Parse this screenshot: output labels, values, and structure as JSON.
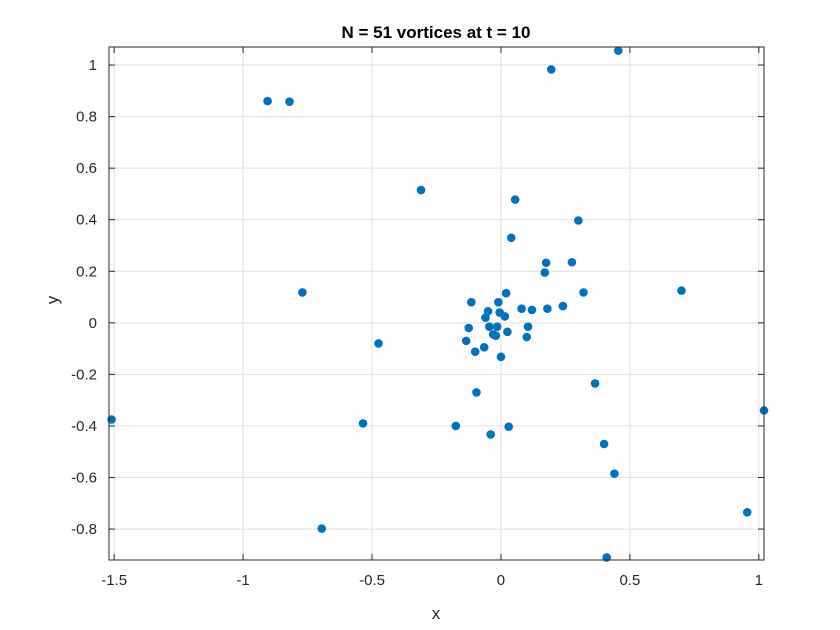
{
  "chart_data": {
    "type": "scatter",
    "title": "N = 51 vortices at t = 10",
    "xlabel": "x",
    "ylabel": "y",
    "xlim": [
      -1.52,
      1.02
    ],
    "ylim": [
      -0.92,
      1.07
    ],
    "xticks": [
      -1.5,
      -1,
      -0.5,
      0,
      0.5,
      1
    ],
    "xtick_labels": [
      "-1.5",
      "-1",
      "-0.5",
      "0",
      "0.5",
      "1"
    ],
    "yticks": [
      -0.8,
      -0.6,
      -0.4,
      -0.2,
      0,
      0.2,
      0.4,
      0.6,
      0.8,
      1
    ],
    "ytick_labels": [
      "-0.8",
      "-0.6",
      "-0.4",
      "-0.2",
      "0",
      "0.2",
      "0.4",
      "0.6",
      "0.8",
      "1"
    ],
    "grid": true,
    "marker_color": "#0072BD",
    "points": [
      [
        -1.51,
        -0.375
      ],
      [
        -0.905,
        0.86
      ],
      [
        -0.82,
        0.858
      ],
      [
        -0.77,
        0.118
      ],
      [
        -0.695,
        -0.798
      ],
      [
        -0.535,
        -0.39
      ],
      [
        -0.475,
        -0.08
      ],
      [
        -0.31,
        0.515
      ],
      [
        -0.175,
        -0.4
      ],
      [
        -0.135,
        -0.07
      ],
      [
        -0.125,
        -0.02
      ],
      [
        -0.115,
        0.08
      ],
      [
        -0.1,
        -0.112
      ],
      [
        -0.095,
        -0.27
      ],
      [
        -0.065,
        -0.095
      ],
      [
        -0.06,
        0.02
      ],
      [
        -0.05,
        0.045
      ],
      [
        -0.045,
        -0.015
      ],
      [
        -0.04,
        -0.433
      ],
      [
        -0.03,
        -0.045
      ],
      [
        -0.02,
        -0.05
      ],
      [
        -0.015,
        -0.015
      ],
      [
        -0.01,
        0.08
      ],
      [
        -0.005,
        0.04
      ],
      [
        0.0,
        -0.132
      ],
      [
        0.015,
        0.025
      ],
      [
        0.02,
        0.115
      ],
      [
        0.025,
        -0.035
      ],
      [
        0.03,
        -0.403
      ],
      [
        0.04,
        0.33
      ],
      [
        0.055,
        0.478
      ],
      [
        0.08,
        0.055
      ],
      [
        0.1,
        -0.055
      ],
      [
        0.105,
        -0.015
      ],
      [
        0.12,
        0.05
      ],
      [
        0.17,
        0.195
      ],
      [
        0.175,
        0.233
      ],
      [
        0.18,
        0.055
      ],
      [
        0.195,
        0.983
      ],
      [
        0.24,
        0.065
      ],
      [
        0.275,
        0.235
      ],
      [
        0.3,
        0.397
      ],
      [
        0.32,
        0.118
      ],
      [
        0.365,
        -0.235
      ],
      [
        0.4,
        -0.47
      ],
      [
        0.41,
        -0.91
      ],
      [
        0.44,
        -0.585
      ],
      [
        0.455,
        1.056
      ],
      [
        0.7,
        0.125
      ],
      [
        0.955,
        -0.735
      ],
      [
        1.02,
        -0.34
      ]
    ]
  }
}
